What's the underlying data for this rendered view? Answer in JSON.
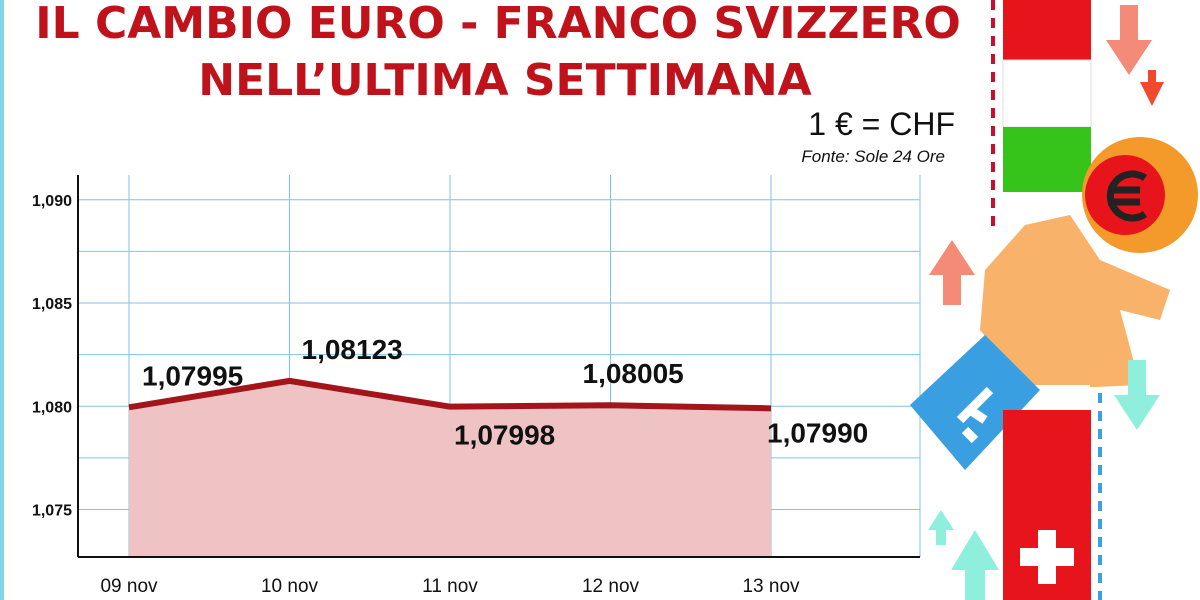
{
  "chart_data": {
    "type": "line",
    "title": [
      "IL CAMBIO EURO - FRANCO SVIZZERO",
      "NELL’ULTIMA SETTIMANA"
    ],
    "unit_note": "1 €  =  CHF",
    "source": "Fonte: Sole 24 Ore",
    "categories": [
      "09 nov",
      "10 nov",
      "11 nov",
      "12 nov",
      "13 nov"
    ],
    "values": [
      1.07995,
      1.08123,
      1.07998,
      1.08005,
      1.0799
    ],
    "value_labels": [
      "1,07995",
      "1,08123",
      "1,07998",
      "1,08005",
      "1,07990"
    ],
    "color": "#a3141b",
    "fill_color": "#efc3c3",
    "ylim": [
      1.0727,
      1.0912
    ],
    "yticks": [
      {
        "value": 1.075,
        "label": "1,075"
      },
      {
        "value": 1.08,
        "label": "1,080"
      },
      {
        "value": 1.085,
        "label": "1,085"
      },
      {
        "value": 1.09,
        "label": "1,090"
      }
    ],
    "minor_yticks": [
      1.0775,
      1.0825,
      1.0875
    ],
    "grid": true
  }
}
